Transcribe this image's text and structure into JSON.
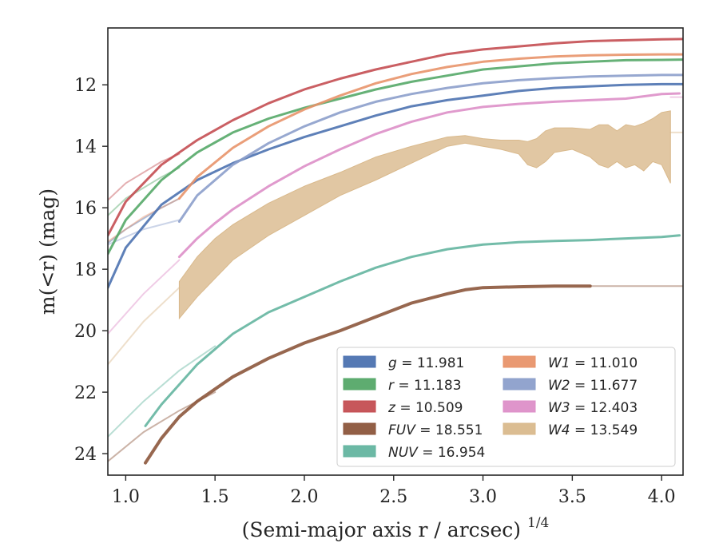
{
  "chart_data": {
    "type": "line",
    "title": "",
    "xlabel": "(Semi-major axis r / arcsec)",
    "xlabel_exponent": "1/4",
    "ylabel": "m(<r) (mag)",
    "xlim": [
      0.9,
      4.12
    ],
    "ylim": [
      24.7,
      10.15
    ],
    "y_inverted": true,
    "x_ticks": [
      1.0,
      1.5,
      2.0,
      2.5,
      3.0,
      3.5,
      4.0
    ],
    "x_tick_labels": [
      "1.0",
      "1.5",
      "2.0",
      "2.5",
      "3.0",
      "3.5",
      "4.0"
    ],
    "y_ticks": [
      12,
      14,
      16,
      18,
      20,
      22,
      24
    ],
    "y_tick_labels": [
      "12",
      "14",
      "16",
      "18",
      "20",
      "22",
      "24"
    ],
    "grid": false,
    "legend_position": "lower-right",
    "series": [
      {
        "name": "g",
        "label": "g = 11.981",
        "color": "#4c72b0",
        "band": false,
        "x": [
          0.9,
          1.0,
          1.2,
          1.4,
          1.6,
          1.8,
          2.0,
          2.2,
          2.4,
          2.6,
          2.8,
          3.0,
          3.2,
          3.4,
          3.6,
          3.8,
          4.0,
          4.12
        ],
        "y": [
          18.6,
          17.3,
          15.9,
          15.1,
          14.55,
          14.1,
          13.7,
          13.35,
          13.0,
          12.7,
          12.5,
          12.35,
          12.2,
          12.1,
          12.05,
          12.0,
          11.98,
          11.98
        ]
      },
      {
        "name": "r",
        "label": "r = 11.183",
        "color": "#55a868",
        "band": false,
        "x": [
          0.9,
          1.0,
          1.2,
          1.4,
          1.6,
          1.8,
          2.0,
          2.2,
          2.4,
          2.6,
          2.8,
          3.0,
          3.2,
          3.4,
          3.6,
          3.8,
          4.0,
          4.12
        ],
        "y": [
          17.5,
          16.4,
          15.1,
          14.2,
          13.55,
          13.1,
          12.75,
          12.45,
          12.15,
          11.9,
          11.7,
          11.5,
          11.4,
          11.3,
          11.25,
          11.2,
          11.19,
          11.18
        ]
      },
      {
        "name": "z",
        "label": "z = 10.509",
        "color": "#c44e52",
        "band": false,
        "x": [
          0.9,
          1.0,
          1.2,
          1.4,
          1.6,
          1.8,
          2.0,
          2.2,
          2.4,
          2.6,
          2.8,
          3.0,
          3.2,
          3.4,
          3.6,
          3.8,
          4.0,
          4.12
        ],
        "y": [
          16.9,
          15.8,
          14.6,
          13.8,
          13.15,
          12.6,
          12.15,
          11.8,
          11.5,
          11.25,
          11.0,
          10.85,
          10.75,
          10.65,
          10.58,
          10.55,
          10.52,
          10.51
        ]
      },
      {
        "name": "FUV",
        "label": "FUV = 18.551",
        "color": "#8c563c",
        "band": false,
        "x": [
          1.11,
          1.2,
          1.3,
          1.4,
          1.5,
          1.6,
          1.8,
          2.0,
          2.2,
          2.4,
          2.6,
          2.8,
          2.9,
          3.0,
          3.2,
          3.4,
          3.6
        ],
        "y": [
          24.3,
          23.5,
          22.8,
          22.3,
          21.9,
          21.5,
          20.9,
          20.4,
          20.0,
          19.55,
          19.1,
          18.8,
          18.67,
          18.6,
          18.57,
          18.55,
          18.55
        ]
      },
      {
        "name": "NUV",
        "label": "NUV = 16.954",
        "color": "#64b5a0",
        "band": false,
        "x": [
          1.11,
          1.2,
          1.3,
          1.4,
          1.5,
          1.6,
          1.8,
          2.0,
          2.2,
          2.4,
          2.6,
          2.8,
          3.0,
          3.2,
          3.4,
          3.6,
          3.8,
          4.0,
          4.1
        ],
        "y": [
          23.1,
          22.4,
          21.75,
          21.1,
          20.6,
          20.1,
          19.4,
          18.9,
          18.4,
          17.95,
          17.6,
          17.35,
          17.2,
          17.12,
          17.08,
          17.05,
          17.0,
          16.95,
          16.9
        ]
      },
      {
        "name": "W1",
        "label": "W1 = 11.010",
        "color": "#e8936a",
        "band": false,
        "x": [
          1.3,
          1.4,
          1.6,
          1.8,
          2.0,
          2.2,
          2.4,
          2.6,
          2.8,
          3.0,
          3.2,
          3.4,
          3.6,
          3.8,
          4.0,
          4.12
        ],
        "y": [
          15.7,
          15.0,
          14.05,
          13.35,
          12.8,
          12.35,
          11.95,
          11.65,
          11.42,
          11.25,
          11.15,
          11.08,
          11.04,
          11.02,
          11.01,
          11.01
        ]
      },
      {
        "name": "W2",
        "label": "W2 = 11.677",
        "color": "#8c9fcb",
        "band": false,
        "x": [
          1.3,
          1.4,
          1.6,
          1.8,
          2.0,
          2.2,
          2.4,
          2.6,
          2.8,
          3.0,
          3.2,
          3.4,
          3.6,
          3.8,
          4.0,
          4.12
        ],
        "y": [
          16.45,
          15.6,
          14.6,
          13.9,
          13.35,
          12.9,
          12.55,
          12.3,
          12.1,
          11.95,
          11.85,
          11.78,
          11.73,
          11.7,
          11.68,
          11.68
        ]
      },
      {
        "name": "W3",
        "label": "W3 = 12.403",
        "color": "#dd8fc8",
        "band": false,
        "x": [
          1.3,
          1.4,
          1.5,
          1.6,
          1.8,
          2.0,
          2.2,
          2.4,
          2.6,
          2.8,
          3.0,
          3.2,
          3.4,
          3.6,
          3.8,
          4.0,
          4.1
        ],
        "y": [
          17.6,
          17.0,
          16.5,
          16.05,
          15.3,
          14.65,
          14.1,
          13.6,
          13.2,
          12.9,
          12.72,
          12.62,
          12.55,
          12.5,
          12.45,
          12.3,
          12.28
        ]
      },
      {
        "name": "W4",
        "label": "W4 = 13.549",
        "color": "#d9b98c",
        "band": true,
        "x": [
          1.3,
          1.4,
          1.5,
          1.6,
          1.8,
          2.0,
          2.2,
          2.4,
          2.6,
          2.8,
          2.9,
          3.0,
          3.1,
          3.2,
          3.25,
          3.3,
          3.35,
          3.4,
          3.5,
          3.6,
          3.65,
          3.7,
          3.75,
          3.8,
          3.85,
          3.9,
          3.95,
          4.0,
          4.05
        ],
        "y_low": [
          19.6,
          18.9,
          18.3,
          17.7,
          16.9,
          16.25,
          15.6,
          15.1,
          14.55,
          14.0,
          13.9,
          14.0,
          14.1,
          14.25,
          14.6,
          14.7,
          14.5,
          14.2,
          14.1,
          14.35,
          14.6,
          14.7,
          14.5,
          14.7,
          14.6,
          14.8,
          14.5,
          14.6,
          15.2
        ],
        "y_high": [
          18.4,
          17.6,
          17.0,
          16.55,
          15.85,
          15.3,
          14.85,
          14.35,
          14.0,
          13.7,
          13.65,
          13.75,
          13.8,
          13.8,
          13.85,
          13.75,
          13.5,
          13.4,
          13.4,
          13.45,
          13.3,
          13.3,
          13.5,
          13.3,
          13.35,
          13.25,
          13.1,
          12.9,
          12.85
        ]
      }
    ],
    "extrapolations": [
      {
        "series": "g",
        "color": "#4c72b0",
        "x": [
          0.9,
          1.0,
          1.2,
          1.3
        ],
        "y": [
          17.15,
          16.7,
          16.0,
          15.7
        ]
      },
      {
        "series": "r",
        "color": "#55a868",
        "x": [
          0.9,
          1.0,
          1.2,
          1.3
        ],
        "y": [
          16.25,
          15.7,
          15.0,
          14.7
        ]
      },
      {
        "series": "z",
        "color": "#c44e52",
        "x": [
          0.9,
          1.0,
          1.2,
          1.3
        ],
        "y": [
          15.75,
          15.2,
          14.5,
          14.25
        ]
      },
      {
        "series": "FUV",
        "color": "#8c563c",
        "x": [
          0.9,
          1.1,
          1.3,
          1.5
        ],
        "y": [
          24.25,
          23.3,
          22.6,
          22.0
        ]
      },
      {
        "series": "FUV",
        "color": "#8c563c",
        "x": [
          3.6,
          4.12
        ],
        "y": [
          18.55,
          18.55
        ]
      },
      {
        "series": "NUV",
        "color": "#64b5a0",
        "x": [
          0.9,
          1.1,
          1.3,
          1.5
        ],
        "y": [
          23.45,
          22.3,
          21.3,
          20.5
        ]
      },
      {
        "series": "W1",
        "color": "#e8936a",
        "x": [
          0.9,
          1.1,
          1.3
        ],
        "y": [
          17.1,
          16.3,
          15.7
        ]
      },
      {
        "series": "W2",
        "color": "#8c9fcb",
        "x": [
          0.9,
          1.1,
          1.3
        ],
        "y": [
          17.2,
          16.7,
          16.4
        ]
      },
      {
        "series": "W3",
        "color": "#dd8fc8",
        "x": [
          0.9,
          1.1,
          1.3
        ],
        "y": [
          20.1,
          18.8,
          17.7
        ]
      },
      {
        "series": "W4",
        "color": "#d9b98c",
        "x": [
          0.9,
          1.1,
          1.3
        ],
        "y": [
          21.1,
          19.7,
          18.6
        ]
      },
      {
        "series": "W4",
        "color": "#d9b98c",
        "x": [
          4.05,
          4.12
        ],
        "y": [
          13.55,
          13.55
        ]
      },
      {
        "series": "W3",
        "color": "#dd8fc8",
        "x": [
          4.05,
          4.12
        ],
        "y": [
          12.4,
          12.4
        ]
      }
    ],
    "legend": [
      {
        "prefix": "g",
        "value": " = 11.981"
      },
      {
        "prefix": "r",
        "value": " = 11.183"
      },
      {
        "prefix": "z",
        "value": " = 10.509"
      },
      {
        "prefix": "FUV",
        "value": " = 18.551"
      },
      {
        "prefix": "NUV",
        "value": " = 16.954"
      },
      {
        "prefix": "W1",
        "value": " = 11.010"
      },
      {
        "prefix": "W2",
        "value": " = 11.677"
      },
      {
        "prefix": "W3",
        "value": " = 12.403"
      },
      {
        "prefix": "W4",
        "value": " = 13.549"
      }
    ]
  }
}
